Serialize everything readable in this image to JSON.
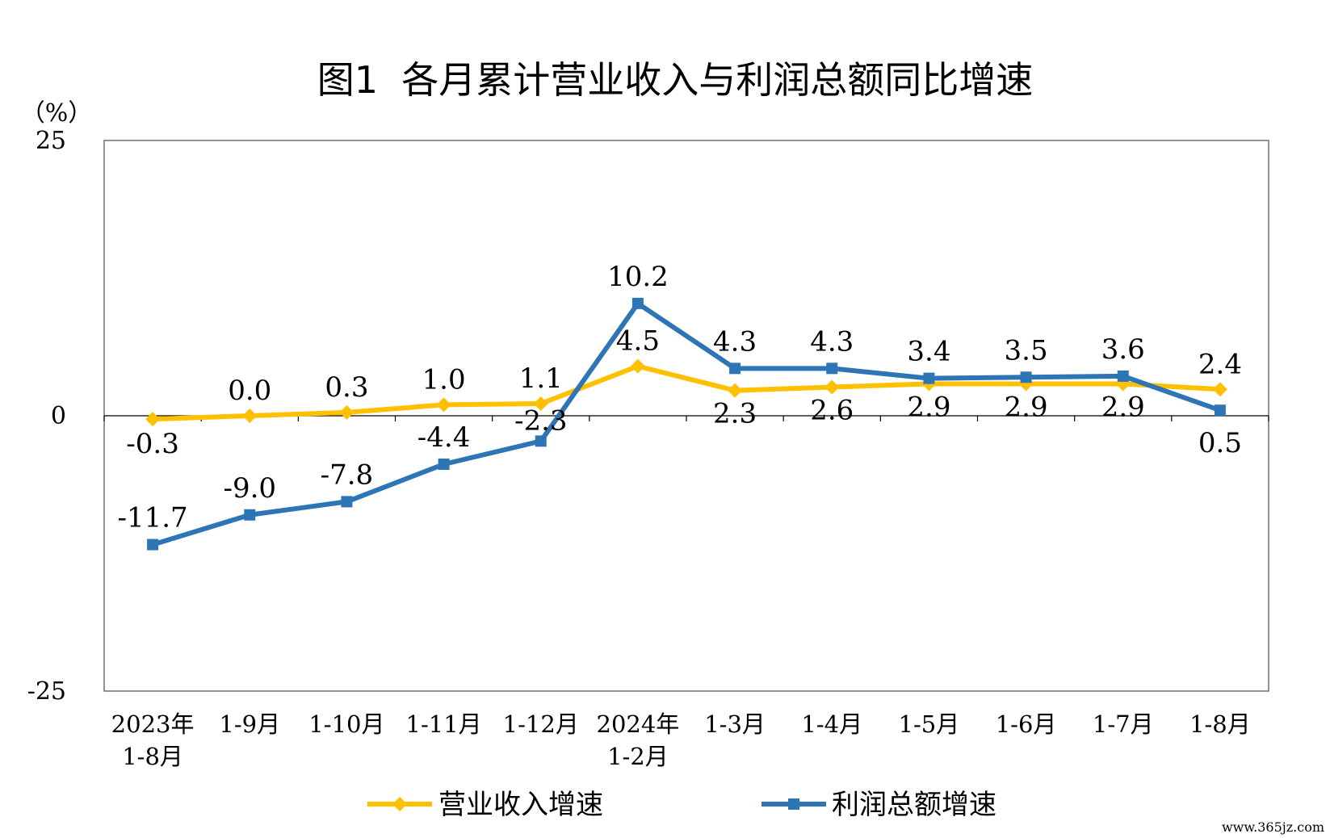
{
  "chart_data": {
    "type": "line",
    "title": "图1  各月累计营业收入与利润总额同比增速",
    "y_unit": "（%）",
    "ylim": [
      -25,
      25
    ],
    "yticks": [
      25,
      0,
      -25
    ],
    "categories": [
      [
        "2023年",
        "1-8月"
      ],
      [
        "1-9月"
      ],
      [
        "1-10月"
      ],
      [
        "1-11月"
      ],
      [
        "1-12月"
      ],
      [
        "2024年",
        "1-2月"
      ],
      [
        "1-3月"
      ],
      [
        "1-4月"
      ],
      [
        "1-5月"
      ],
      [
        "1-6月"
      ],
      [
        "1-7月"
      ],
      [
        "1-8月"
      ]
    ],
    "series": [
      {
        "name": "营业收入增速",
        "color": "#FFC000",
        "marker": "diamond",
        "values": [
          -0.3,
          0.0,
          0.3,
          1.0,
          1.1,
          4.5,
          2.3,
          2.6,
          2.9,
          2.9,
          2.9,
          2.4
        ],
        "labels": [
          "-0.3",
          "0.0",
          "0.3",
          "1.0",
          "1.1",
          "4.5",
          "2.3",
          "2.6",
          "2.9",
          "2.9",
          "2.9",
          "2.4"
        ]
      },
      {
        "name": "利润总额增速",
        "color": "#2E75B6",
        "marker": "square",
        "values": [
          -11.7,
          -9.0,
          -7.8,
          -4.4,
          -2.3,
          10.2,
          4.3,
          4.3,
          3.4,
          3.5,
          3.6,
          0.5
        ],
        "labels": [
          "-11.7",
          "-9.0",
          "-7.8",
          "-4.4",
          "-2.3",
          "10.2",
          "4.3",
          "4.3",
          "3.4",
          "3.5",
          "3.6",
          "0.5"
        ]
      }
    ],
    "legend": "bottom",
    "grid": false
  },
  "watermark": "www.365jz.com"
}
